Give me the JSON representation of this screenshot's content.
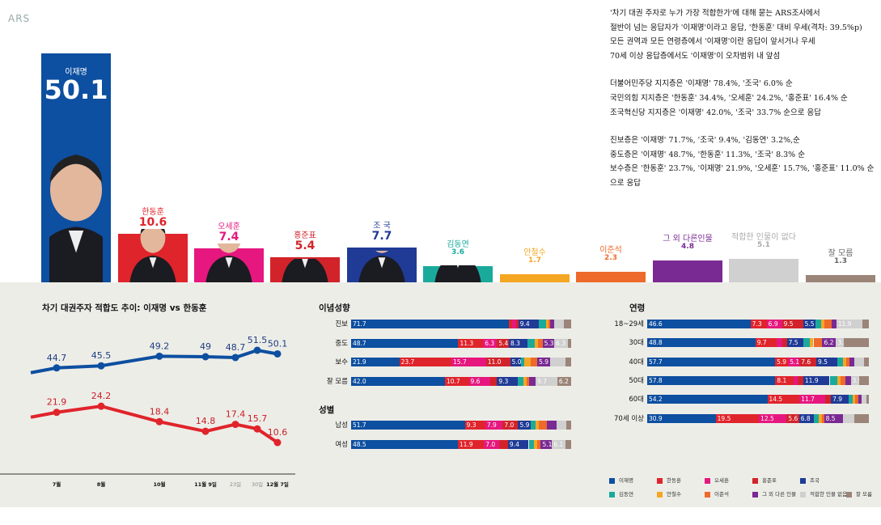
{
  "source_label": "ARS",
  "notes": [
    "'차기 대권 주자로 누가 가장 적합한가'에 대해 묻는 ARS조사에서",
    "절반이 넘는 응답자가 '이재명'이라고 응답, '한동훈' 대비 우세(격차: 39.5%p)",
    "모든 권역과 모든 연령층에서 '이재명'이란 응답이 앞서거나 우세",
    "70세 이상 응답층에서도 '이재명'이 오차범위 내 앞섬",
    "",
    "더불어민주당 지지층은 '이재명' 78.4%, '조국' 6.0% 순",
    "국민의힘 지지층은 '한동훈' 34.4%, '오세훈' 24.2%, '홍준표' 16.4% 순",
    "조국혁신당 지지층은 '이재명' 42.0%, '조국' 33.7% 순으로 응답",
    "",
    "진보층은 '이재명' 71.7%, '조국' 9.4%, '김동연' 3.2%,순",
    "중도층은 '이재명' 48.7%, '한동훈' 11.3%, '조국' 8.3% 순",
    "보수층은 '한동훈' 23.7%, '이재명' 21.9%, '오세훈' 15.7%, '홍준표' 11.0% 순으로 응답"
  ],
  "colors": {
    "이재명": "#0d4fa0",
    "한동훈": "#e0242b",
    "오세훈": "#e6177f",
    "홍준표": "#d2232a",
    "조국": "#1f3b96",
    "김동연": "#1aaa9c",
    "안철수": "#f5a623",
    "이준석": "#ee6a2a",
    "그외": "#7a2a93",
    "없음": "#d0d0d0",
    "모름": "#9b8578"
  },
  "chart_data": [
    {
      "type": "bar",
      "categories": [
        "이재명",
        "한동훈",
        "오세훈",
        "홍준표",
        "조 국",
        "김동연",
        "안철수",
        "이준석",
        "그 외 다른인물",
        "적합한 인물이 없다",
        "잘 모름"
      ],
      "values": [
        50.1,
        10.6,
        7.4,
        5.4,
        7.7,
        3.6,
        1.7,
        2.3,
        4.8,
        5.1,
        1.3
      ],
      "value_labels": [
        "50.1",
        "10.6",
        "7.4",
        "5.4",
        "7.7",
        "3.6",
        "1.7",
        "2.3",
        "4.8",
        "5.1",
        "1.3"
      ]
    },
    {
      "type": "line",
      "title": "차기 대권주자 적합도 추이: 이재명 vs 한동훈",
      "x": [
        "7월",
        "8월",
        "10월",
        "11월 9일",
        "23일",
        "30일",
        "12월 7일"
      ],
      "x_positions_labels": [
        "7월",
        "8월",
        "10월",
        "11월 9일",
        "23일",
        "30일",
        "12월 7일"
      ],
      "series": [
        {
          "name": "이재명",
          "values": [
            44.7,
            45.5,
            49.2,
            49.0,
            48.7,
            51.5,
            50.1
          ]
        },
        {
          "name": "한동훈",
          "values": [
            21.9,
            24.2,
            18.4,
            14.8,
            17.4,
            15.7,
            10.6
          ]
        }
      ]
    },
    {
      "type": "bar",
      "title": "이념성향",
      "stacked": true,
      "categories": [
        "진보",
        "중도",
        "보수",
        "잘 모름"
      ],
      "series_order": [
        "이재명",
        "한동훈",
        "오세훈",
        "홍준표",
        "조국",
        "김동연",
        "안철수",
        "이준석",
        "그외",
        "없음",
        "모름"
      ],
      "rows": [
        [
          71.7,
          1.5,
          1.8,
          1.0,
          9.4,
          3.2,
          1.0,
          1.0,
          1.5,
          4.5,
          3.4
        ],
        [
          48.7,
          11.3,
          6.3,
          5.4,
          8.3,
          3.5,
          1.5,
          2.0,
          5.3,
          6.3,
          1.4
        ],
        [
          21.9,
          23.7,
          15.7,
          11.0,
          5.0,
          1.5,
          2.8,
          3.0,
          5.9,
          7.0,
          2.5
        ],
        [
          42.0,
          10.7,
          9.6,
          3.0,
          9.3,
          2.5,
          1.5,
          1.0,
          3.0,
          9.7,
          6.2
        ]
      ],
      "labels": [
        [
          "71.7",
          "",
          "",
          "",
          "9.4",
          "",
          "",
          "",
          "",
          "",
          ""
        ],
        [
          "48.7",
          "11.3",
          "6.3",
          "5.4",
          "8.3",
          "",
          "",
          "",
          "5.3",
          "6.3",
          ""
        ],
        [
          "21.9",
          "23.7",
          "15.7",
          "11.0",
          "5.0",
          "",
          "",
          "",
          "5.9",
          "",
          ""
        ],
        [
          "42.0",
          "10.7",
          "9.6",
          "",
          "9.3",
          "",
          "",
          "",
          "",
          "9.7",
          "6.2"
        ]
      ]
    },
    {
      "type": "bar",
      "title": "성별",
      "stacked": true,
      "categories": [
        "남성",
        "여성"
      ],
      "series_order": [
        "이재명",
        "한동훈",
        "오세훈",
        "홍준표",
        "조국",
        "김동연",
        "안철수",
        "이준석",
        "그외",
        "없음",
        "모름"
      ],
      "rows": [
        [
          51.7,
          9.3,
          7.9,
          7.0,
          5.9,
          2.0,
          1.5,
          3.5,
          4.5,
          4.5,
          2.2
        ],
        [
          48.5,
          11.9,
          7.0,
          3.9,
          9.4,
          2.5,
          1.5,
          1.5,
          5.1,
          6.1,
          2.6
        ]
      ],
      "labels": [
        [
          "51.7",
          "9.3",
          "7.9",
          "7.0",
          "5.9",
          "",
          "",
          "",
          "",
          "",
          ""
        ],
        [
          "48.5",
          "11.9",
          "7.0",
          "",
          "9.4",
          "",
          "",
          "",
          "5.1",
          "6.1",
          ""
        ]
      ]
    },
    {
      "type": "bar",
      "title": "연령",
      "stacked": true,
      "categories": [
        "18~29세",
        "30대",
        "40대",
        "50대",
        "60대",
        "70세 이상"
      ],
      "series_order": [
        "이재명",
        "한동훈",
        "오세훈",
        "홍준표",
        "조국",
        "김동연",
        "안철수",
        "이준석",
        "그외",
        "없음",
        "모름"
      ],
      "rows": [
        [
          46.6,
          7.3,
          6.9,
          9.5,
          5.5,
          2.5,
          1.5,
          3.5,
          2.0,
          11.9,
          2.8
        ],
        [
          48.8,
          9.7,
          2.5,
          2.0,
          7.5,
          3.0,
          1.5,
          4.0,
          6.2,
          3.4,
          11.4
        ],
        [
          57.7,
          5.9,
          5.1,
          7.6,
          9.5,
          2.5,
          1.5,
          1.5,
          2.0,
          4.5,
          2.2
        ],
        [
          57.8,
          8.1,
          2.0,
          2.5,
          11.9,
          3.5,
          1.5,
          2.0,
          2.5,
          3.9,
          4.3
        ],
        [
          54.2,
          14.5,
          11.7,
          2.5,
          7.9,
          2.0,
          1.0,
          1.5,
          1.5,
          2.0,
          1.2
        ],
        [
          30.9,
          19.5,
          12.5,
          5.6,
          6.8,
          2.0,
          1.5,
          1.0,
          8.5,
          5.0,
          6.7
        ]
      ],
      "labels": [
        [
          "46.6",
          "7.3",
          "6.9",
          "9.5",
          "5.5",
          "",
          "",
          "",
          "",
          "11.9",
          ""
        ],
        [
          "48.8",
          "9.7",
          "",
          "",
          "7.5",
          "",
          "",
          "",
          "6.2",
          "3.4",
          ""
        ],
        [
          "57.7",
          "5.9",
          "5.1",
          "7.6",
          "9.5",
          "",
          "",
          "",
          "",
          "",
          ""
        ],
        [
          "57.8",
          "8.1",
          "",
          "",
          "11.9",
          "",
          "",
          "",
          "",
          "3.9",
          ""
        ],
        [
          "54.2",
          "14.5",
          "11.7",
          "",
          "7.9",
          "",
          "",
          "",
          "",
          "",
          ""
        ],
        [
          "30.9",
          "19.5",
          "12.5",
          "5.6",
          "6.8",
          "",
          "",
          "",
          "8.5",
          "",
          ""
        ]
      ]
    }
  ],
  "legend": [
    {
      "key": "이재명",
      "label": "이재명"
    },
    {
      "key": "한동훈",
      "label": "한동훈"
    },
    {
      "key": "오세훈",
      "label": "오세훈"
    },
    {
      "key": "홍준표",
      "label": "홍준표"
    },
    {
      "key": "조국",
      "label": "조국"
    },
    {
      "key": "김동연",
      "label": "김동연"
    },
    {
      "key": "안철수",
      "label": "안철수"
    },
    {
      "key": "이준석",
      "label": "이준석"
    },
    {
      "key": "그외",
      "label": "그 외 다른 인물"
    },
    {
      "key": "없음",
      "label": "적합한 인물 없음"
    },
    {
      "key": "모름",
      "label": "잘 모름"
    }
  ]
}
